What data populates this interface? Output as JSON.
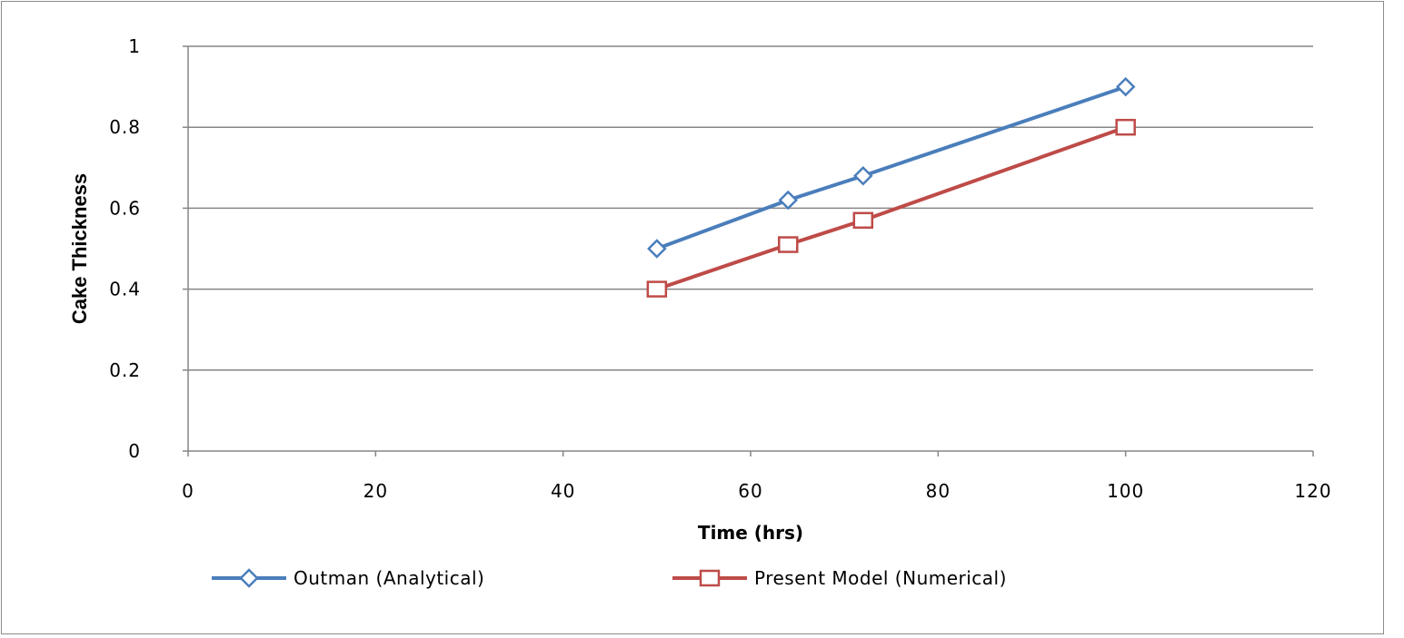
{
  "chart_data": {
    "type": "line",
    "title": "",
    "xlabel": "Time (hrs)",
    "ylabel": "Cake Thickness",
    "xlim": [
      0,
      120
    ],
    "ylim": [
      0,
      1
    ],
    "xticks": [
      "0",
      "20",
      "40",
      "60",
      "80",
      "100",
      "120"
    ],
    "yticks": [
      "0",
      "0.2",
      "0.4",
      "0.6",
      "0.8",
      "1"
    ],
    "grid": "horizontal",
    "legend_position": "bottom",
    "series": [
      {
        "name": "Outman (Analytical)",
        "marker": "diamond",
        "color": "#4a7ebb",
        "x": [
          50,
          64,
          72,
          100
        ],
        "y": [
          0.5,
          0.62,
          0.68,
          0.9
        ]
      },
      {
        "name": "Present Model (Numerical)",
        "marker": "square",
        "color": "#be4b48",
        "x": [
          50,
          64,
          72,
          100
        ],
        "y": [
          0.4,
          0.51,
          0.57,
          0.8
        ]
      }
    ]
  }
}
